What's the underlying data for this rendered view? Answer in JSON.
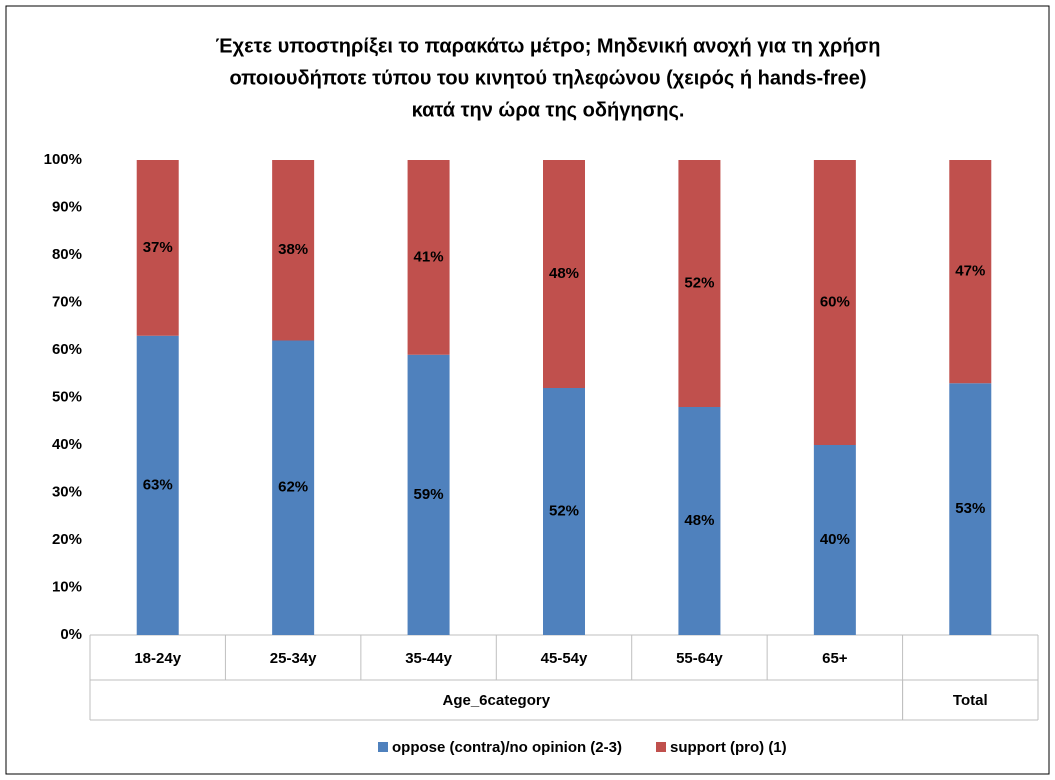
{
  "chart_data": {
    "type": "stacked_bar",
    "title": [
      "Έχετε υποστηρίξει το παρακάτω μέτρο; Μηδενική ανοχή για τη χρήση",
      "οποιουδήποτε τύπου του κινητού τηλεφώνου (χειρός ή hands-free)",
      "κατά την ώρα της οδήγησης."
    ],
    "categories": [
      "18-24y",
      "25-34y",
      "35-44y",
      "45-54y",
      "55-64y",
      "65+",
      null
    ],
    "category_groups": [
      {
        "label": "Age_6category",
        "span": 6
      },
      {
        "label": "Total",
        "span": 1
      }
    ],
    "series": [
      {
        "name": "oppose (contra)/no opinion (2-3)",
        "color": "#4f81bd",
        "values": [
          63,
          62,
          59,
          52,
          48,
          40,
          53
        ],
        "value_labels": [
          "63%",
          "62%",
          "59%",
          "52%",
          "48%",
          "40%",
          "53%"
        ]
      },
      {
        "name": "support (pro) (1)",
        "color": "#c0504d",
        "values": [
          37,
          38,
          41,
          48,
          52,
          60,
          47
        ],
        "value_labels": [
          "37%",
          "38%",
          "41%",
          "48%",
          "52%",
          "60%",
          "47%"
        ]
      }
    ],
    "ylim": [
      0,
      100
    ],
    "yticks": [
      {
        "value": 0,
        "label": "0%"
      },
      {
        "value": 10,
        "label": "10%"
      },
      {
        "value": 20,
        "label": "20%"
      },
      {
        "value": 30,
        "label": "30%"
      },
      {
        "value": 40,
        "label": "40%"
      },
      {
        "value": 50,
        "label": "50%"
      },
      {
        "value": 60,
        "label": "60%"
      },
      {
        "value": 70,
        "label": "70%"
      },
      {
        "value": 80,
        "label": "80%"
      },
      {
        "value": 90,
        "label": "90%"
      },
      {
        "value": 100,
        "label": "100%"
      }
    ],
    "legend": "bottom"
  }
}
